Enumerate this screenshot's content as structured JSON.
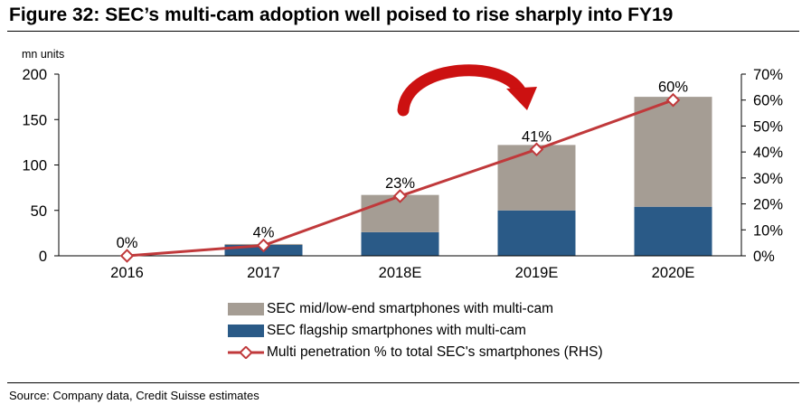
{
  "header": {
    "title": "Figure 32: SEC’s multi-cam adoption well poised to rise sharply into FY19"
  },
  "footer": {
    "source": "Source: Company data, Credit Suisse estimates"
  },
  "colors": {
    "midlow": "#a59d94",
    "flagship": "#2a5a87",
    "line": "#c0393b",
    "arrow": "#cc1111"
  },
  "chart_data": {
    "type": "bar",
    "categories": [
      "2016",
      "2017",
      "2018E",
      "2019E",
      "2020E"
    ],
    "ylabel": "mn units",
    "ylim": [
      0,
      200
    ],
    "yticks": [
      "0",
      "50",
      "100",
      "150",
      "200"
    ],
    "y2lim": [
      0,
      70
    ],
    "y2ticks": [
      "0%",
      "10%",
      "20%",
      "30%",
      "40%",
      "50%",
      "60%",
      "70%"
    ],
    "grid": false,
    "legend_position": "bottom",
    "series": [
      {
        "name": "SEC mid/low-end smartphones with multi-cam",
        "kind": "bar",
        "stack": true,
        "values": [
          0,
          1,
          41,
          72,
          121
        ]
      },
      {
        "name": "SEC flagship smartphones with multi-cam",
        "kind": "bar",
        "stack": true,
        "values": [
          0,
          12,
          26,
          50,
          54
        ]
      },
      {
        "name": "Multi penetration % to total SEC's smartphones (RHS)",
        "kind": "line",
        "axis": "right",
        "values": [
          0,
          4,
          23,
          41,
          60
        ],
        "labels": [
          "0%",
          "4%",
          "23%",
          "41%",
          "60%"
        ]
      }
    ]
  }
}
